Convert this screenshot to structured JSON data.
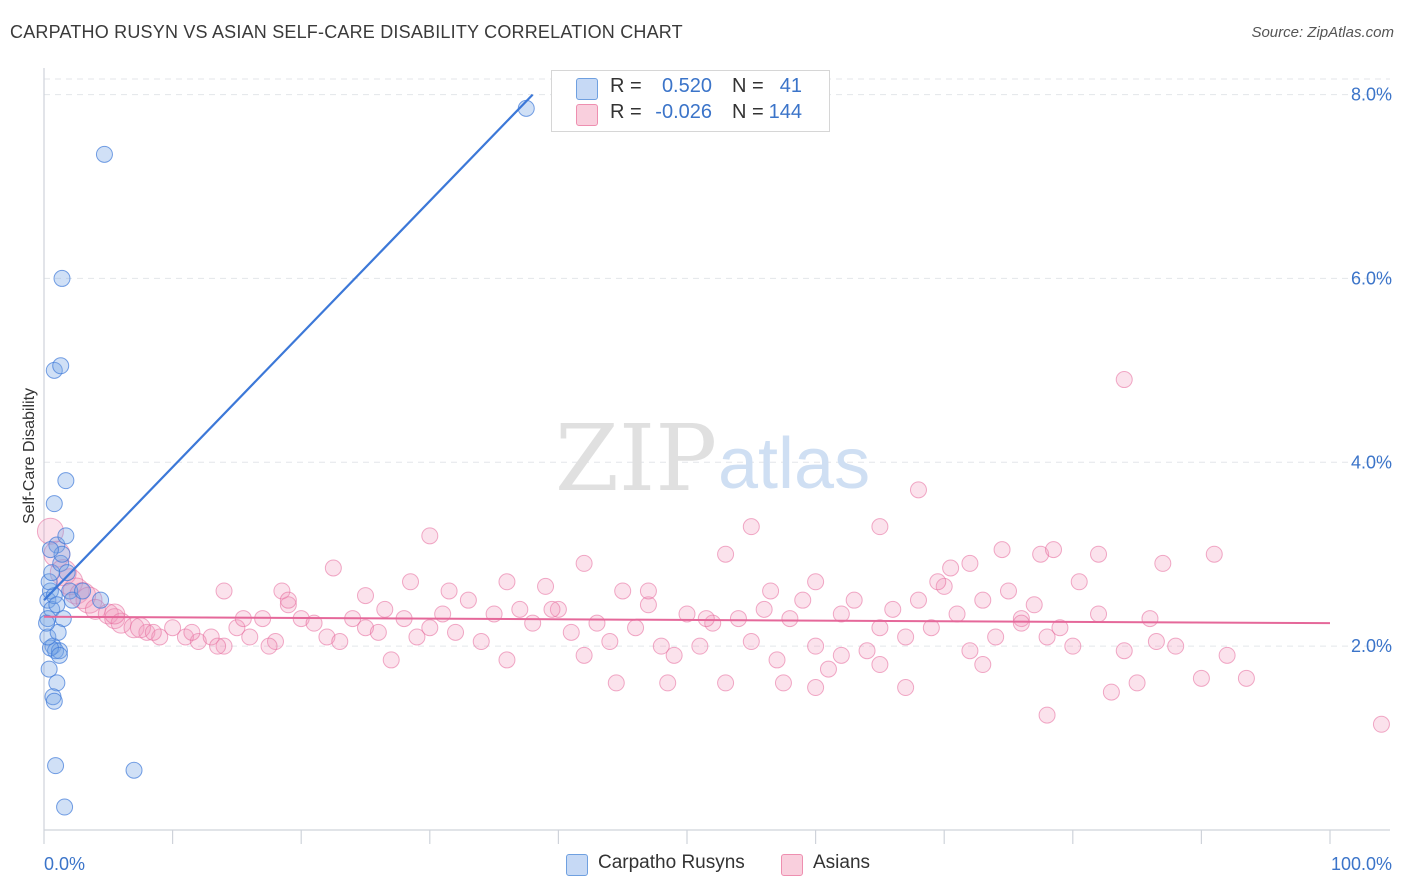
{
  "title": "CARPATHO RUSYN VS ASIAN SELF-CARE DISABILITY CORRELATION CHART",
  "source": "Source: ZipAtlas.com",
  "watermark": {
    "zip": "ZIP",
    "atlas": "atlas"
  },
  "legend": {
    "r_label": "R =",
    "n_label": "N =",
    "rows": [
      {
        "name": "Carpatho Rusyns",
        "r": "0.520",
        "n": "41",
        "color": "#6fa0e0"
      },
      {
        "name": "Asians",
        "r": "-0.026",
        "n": "144",
        "color": "#ee8fb0"
      }
    ]
  },
  "chart_data": {
    "type": "scatter",
    "title": "CARPATHO RUSYN VS ASIAN SELF-CARE DISABILITY CORRELATION CHART",
    "xlabel": "",
    "ylabel": "Self-Care Disability",
    "xlim": [
      0,
      100
    ],
    "ylim": [
      0,
      8.3
    ],
    "x_tick_labels": [
      "0.0%",
      "100.0%"
    ],
    "y_ticks": [
      2,
      4,
      6,
      8
    ],
    "y_tick_labels": [
      "2.0%",
      "4.0%",
      "6.0%",
      "8.0%"
    ],
    "grid": true,
    "colors": {
      "Carpatho Rusyns": "#3c78d8",
      "Asians": "#e5689a"
    },
    "series": [
      {
        "name": "Carpatho Rusyns",
        "trend": {
          "x": [
            0,
            38
          ],
          "y": [
            2.5,
            8.0
          ]
        },
        "points": [
          [
            0.3,
            2.5
          ],
          [
            0.5,
            2.6
          ],
          [
            0.6,
            2.4
          ],
          [
            0.8,
            2.55
          ],
          [
            0.4,
            2.7
          ],
          [
            1.0,
            2.45
          ],
          [
            0.7,
            2.0
          ],
          [
            0.9,
            1.95
          ],
          [
            1.2,
            1.95
          ],
          [
            0.5,
            1.98
          ],
          [
            0.3,
            2.3
          ],
          [
            1.5,
            2.3
          ],
          [
            0.6,
            2.8
          ],
          [
            1.3,
            2.9
          ],
          [
            1.0,
            3.1
          ],
          [
            1.7,
            3.2
          ],
          [
            1.4,
            3.0
          ],
          [
            0.8,
            3.55
          ],
          [
            1.7,
            3.8
          ],
          [
            0.8,
            5.0
          ],
          [
            1.3,
            5.05
          ],
          [
            1.4,
            6.0
          ],
          [
            4.7,
            7.35
          ],
          [
            37.5,
            7.85
          ],
          [
            0.4,
            1.75
          ],
          [
            1.0,
            1.6
          ],
          [
            0.7,
            1.45
          ],
          [
            0.8,
            1.4
          ],
          [
            0.9,
            0.7
          ],
          [
            7.0,
            0.65
          ],
          [
            1.6,
            0.25
          ],
          [
            0.3,
            2.1
          ],
          [
            1.1,
            2.15
          ],
          [
            2.0,
            2.6
          ],
          [
            2.2,
            2.5
          ],
          [
            4.4,
            2.5
          ],
          [
            0.2,
            2.25
          ],
          [
            1.8,
            2.8
          ],
          [
            0.5,
            3.05
          ],
          [
            3.0,
            2.6
          ],
          [
            1.2,
            1.9
          ]
        ]
      },
      {
        "name": "Asians",
        "trend": {
          "x": [
            0,
            100
          ],
          "y": [
            2.32,
            2.25
          ]
        },
        "points": [
          [
            0.5,
            3.25
          ],
          [
            1.0,
            3.0
          ],
          [
            1.5,
            2.8
          ],
          [
            2.0,
            2.7
          ],
          [
            2.5,
            2.6
          ],
          [
            3.0,
            2.55
          ],
          [
            3.5,
            2.5
          ],
          [
            4.0,
            2.4
          ],
          [
            5.0,
            2.35
          ],
          [
            5.5,
            2.3
          ],
          [
            6.0,
            2.25
          ],
          [
            7.0,
            2.2
          ],
          [
            8.0,
            2.15
          ],
          [
            9.0,
            2.1
          ],
          [
            10.0,
            2.2
          ],
          [
            11.0,
            2.1
          ],
          [
            12.0,
            2.05
          ],
          [
            13.0,
            2.1
          ],
          [
            14.0,
            2.0
          ],
          [
            15.0,
            2.2
          ],
          [
            16.0,
            2.1
          ],
          [
            17.0,
            2.3
          ],
          [
            18.0,
            2.05
          ],
          [
            19.0,
            2.45
          ],
          [
            20.0,
            2.3
          ],
          [
            21.0,
            2.25
          ],
          [
            22.0,
            2.1
          ],
          [
            23.0,
            2.05
          ],
          [
            24.0,
            2.3
          ],
          [
            25.0,
            2.2
          ],
          [
            26.0,
            2.15
          ],
          [
            27.0,
            1.85
          ],
          [
            28.0,
            2.3
          ],
          [
            29.0,
            2.1
          ],
          [
            30.0,
            2.2
          ],
          [
            31.0,
            2.35
          ],
          [
            32.0,
            2.15
          ],
          [
            33.0,
            2.5
          ],
          [
            34.0,
            2.05
          ],
          [
            35.0,
            2.35
          ],
          [
            36.0,
            1.85
          ],
          [
            37.0,
            2.4
          ],
          [
            38.0,
            2.25
          ],
          [
            39.0,
            2.65
          ],
          [
            40.0,
            2.4
          ],
          [
            41.0,
            2.15
          ],
          [
            42.0,
            1.9
          ],
          [
            43.0,
            2.25
          ],
          [
            44.0,
            2.05
          ],
          [
            45.0,
            2.6
          ],
          [
            46.0,
            2.2
          ],
          [
            47.0,
            2.45
          ],
          [
            48.0,
            2.0
          ],
          [
            49.0,
            1.9
          ],
          [
            50.0,
            2.35
          ],
          [
            51.0,
            2.0
          ],
          [
            52.0,
            2.25
          ],
          [
            53.0,
            1.6
          ],
          [
            54.0,
            2.3
          ],
          [
            55.0,
            2.05
          ],
          [
            56.0,
            2.4
          ],
          [
            57.0,
            1.85
          ],
          [
            58.0,
            2.3
          ],
          [
            59.0,
            2.5
          ],
          [
            60.0,
            2.0
          ],
          [
            61.0,
            1.75
          ],
          [
            62.0,
            2.35
          ],
          [
            63.0,
            2.5
          ],
          [
            64.0,
            1.95
          ],
          [
            65.0,
            2.2
          ],
          [
            66.0,
            2.4
          ],
          [
            67.0,
            2.1
          ],
          [
            68.0,
            2.5
          ],
          [
            69.0,
            2.2
          ],
          [
            70.0,
            2.65
          ],
          [
            71.0,
            2.35
          ],
          [
            72.0,
            1.95
          ],
          [
            73.0,
            2.5
          ],
          [
            74.0,
            2.1
          ],
          [
            75.0,
            2.6
          ],
          [
            76.0,
            2.3
          ],
          [
            77.0,
            2.45
          ],
          [
            78.0,
            2.1
          ],
          [
            79.0,
            2.2
          ],
          [
            80.0,
            2.0
          ],
          [
            82.0,
            2.35
          ],
          [
            84.0,
            1.95
          ],
          [
            86.0,
            2.3
          ],
          [
            88.0,
            2.0
          ],
          [
            90.0,
            1.65
          ],
          [
            92.0,
            1.9
          ],
          [
            74.5,
            3.05
          ],
          [
            77.5,
            3.0
          ],
          [
            65.0,
            3.3
          ],
          [
            68.0,
            3.7
          ],
          [
            78.5,
            3.05
          ],
          [
            82.0,
            3.0
          ],
          [
            84.0,
            4.9
          ],
          [
            87.0,
            2.9
          ],
          [
            91.0,
            3.0
          ],
          [
            55.0,
            3.3
          ],
          [
            53.0,
            3.0
          ],
          [
            42.0,
            2.9
          ],
          [
            30.0,
            3.2
          ],
          [
            28.5,
            2.7
          ],
          [
            36.0,
            2.7
          ],
          [
            39.5,
            2.4
          ],
          [
            56.5,
            2.6
          ],
          [
            44.5,
            1.6
          ],
          [
            48.5,
            1.6
          ],
          [
            62.0,
            1.9
          ],
          [
            57.5,
            1.6
          ],
          [
            60.0,
            1.55
          ],
          [
            65.0,
            1.8
          ],
          [
            67.0,
            1.55
          ],
          [
            73.0,
            1.8
          ],
          [
            78.0,
            1.25
          ],
          [
            83.0,
            1.5
          ],
          [
            85.0,
            1.6
          ],
          [
            93.5,
            1.65
          ],
          [
            104.0,
            1.15
          ],
          [
            14.0,
            2.6
          ],
          [
            18.5,
            2.6
          ],
          [
            19.0,
            2.5
          ],
          [
            25.0,
            2.55
          ],
          [
            31.5,
            2.6
          ],
          [
            47.0,
            2.6
          ],
          [
            51.5,
            2.3
          ],
          [
            60.0,
            2.7
          ],
          [
            69.5,
            2.7
          ],
          [
            70.5,
            2.85
          ],
          [
            72.0,
            2.9
          ],
          [
            76.0,
            2.25
          ],
          [
            80.5,
            2.7
          ],
          [
            86.5,
            2.05
          ],
          [
            5.5,
            2.35
          ],
          [
            7.5,
            2.2
          ],
          [
            8.5,
            2.15
          ],
          [
            11.5,
            2.15
          ],
          [
            13.5,
            2.0
          ],
          [
            15.5,
            2.3
          ],
          [
            17.5,
            2.0
          ],
          [
            22.5,
            2.85
          ],
          [
            26.5,
            2.4
          ]
        ]
      }
    ]
  }
}
